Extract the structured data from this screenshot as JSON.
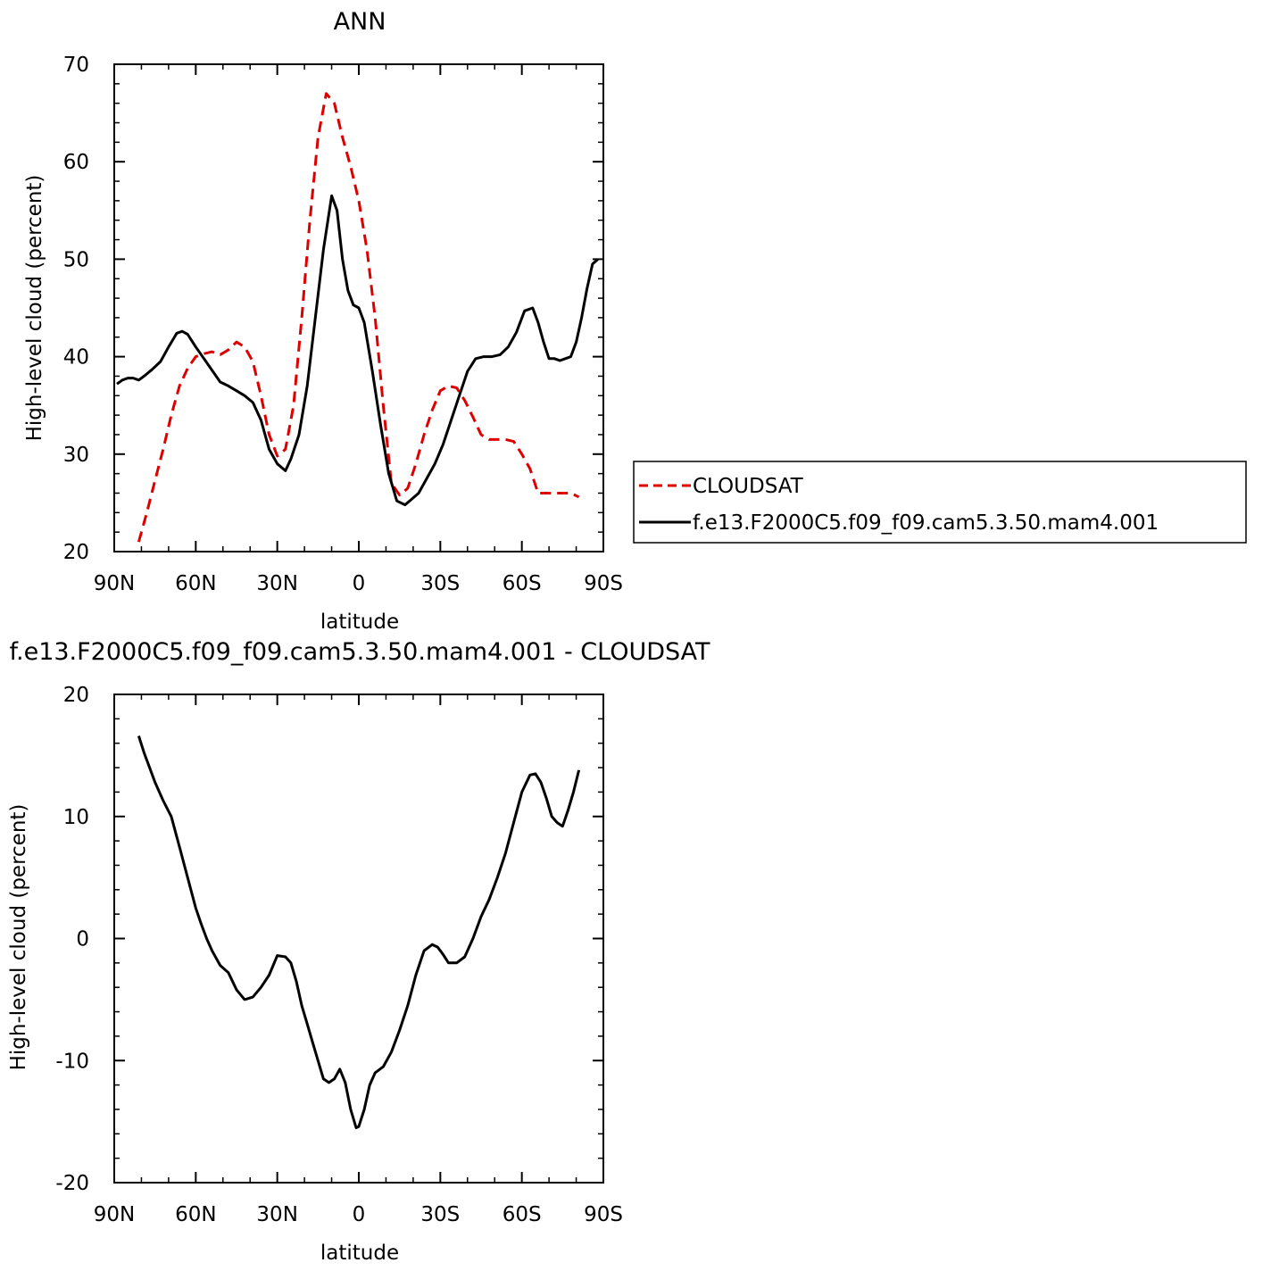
{
  "chart_data": [
    {
      "type": "line",
      "title": "ANN",
      "xlabel": "latitude",
      "ylabel": "High-level cloud (percent)",
      "xlim": [
        90,
        -90
      ],
      "ylim": [
        20,
        70
      ],
      "x_ticks": [
        90,
        60,
        30,
        0,
        -30,
        -60,
        -90
      ],
      "x_tick_labels": [
        "90N",
        "60N",
        "30N",
        "0",
        "30S",
        "60S",
        "90S"
      ],
      "y_ticks": [
        20,
        30,
        40,
        50,
        60,
        70
      ],
      "y_tick_labels": [
        "20",
        "30",
        "40",
        "50",
        "60",
        "70"
      ],
      "grid": false,
      "legend_position": "right",
      "series": [
        {
          "name": "CLOUDSAT",
          "color": "#dd0000",
          "style": "dashed",
          "x": [
            81,
            78,
            75,
            72,
            69,
            66,
            63,
            60,
            57,
            54,
            51,
            48,
            45,
            42,
            39,
            36,
            33,
            30,
            27,
            24,
            21,
            18,
            15,
            12,
            9,
            6,
            3,
            0,
            -3,
            -6,
            -9,
            -12,
            -15,
            -18,
            -21,
            -24,
            -27,
            -30,
            -33,
            -36,
            -39,
            -42,
            -45,
            -48,
            -51,
            -54,
            -57,
            -60,
            -63,
            -66,
            -69,
            -72,
            -75,
            -78,
            -81
          ],
          "values": [
            21.0,
            24.0,
            27.3,
            30.5,
            34.0,
            37.0,
            38.8,
            40.0,
            40.3,
            40.5,
            40.2,
            40.7,
            41.5,
            41.0,
            39.5,
            36.0,
            32.0,
            29.8,
            30.5,
            35.0,
            44.0,
            54.0,
            62.5,
            67.0,
            66.0,
            62.5,
            59.5,
            56.0,
            51.0,
            44.0,
            35.0,
            27.0,
            25.8,
            26.5,
            29.0,
            32.0,
            34.5,
            36.5,
            37.0,
            36.8,
            35.5,
            33.8,
            32.0,
            31.5,
            31.5,
            31.5,
            31.3,
            30.0,
            28.5,
            26.0,
            26.0,
            26.0,
            26.0,
            26.0,
            25.6
          ]
        },
        {
          "name": "f.e13.F2000C5.f09_f09.cam5.3.50.mam4.001",
          "color": "#000000",
          "style": "solid",
          "x": [
            89,
            87,
            85,
            83,
            81,
            79,
            76,
            73,
            70,
            67,
            65,
            63,
            60,
            57,
            54,
            51,
            48,
            45,
            42,
            39,
            36,
            33,
            30,
            27,
            25,
            22,
            19,
            16,
            13,
            10,
            8,
            6,
            4,
            2,
            0,
            -2,
            -5,
            -8,
            -11,
            -14,
            -17,
            -20,
            -22,
            -25,
            -28,
            -31,
            -34,
            -37,
            -40,
            -43,
            -46,
            -49,
            -52,
            -55,
            -58,
            -61,
            -64,
            -66,
            -68,
            -70,
            -72,
            -74,
            -76,
            -78,
            -80,
            -82,
            -84,
            -86,
            -88
          ],
          "values": [
            37.2,
            37.6,
            37.8,
            37.8,
            37.6,
            38.0,
            38.7,
            39.5,
            41.0,
            42.4,
            42.6,
            42.3,
            41.0,
            39.8,
            38.6,
            37.4,
            37.0,
            36.5,
            36.0,
            35.3,
            33.5,
            30.5,
            29.0,
            28.3,
            29.5,
            32.0,
            37.0,
            44.0,
            51.0,
            56.5,
            55.0,
            50.0,
            46.8,
            45.3,
            45.0,
            43.5,
            38.5,
            33.0,
            28.0,
            25.2,
            24.8,
            25.5,
            26.0,
            27.5,
            29.0,
            31.0,
            33.5,
            36.0,
            38.5,
            39.8,
            40.0,
            40.0,
            40.2,
            41.0,
            42.5,
            44.7,
            45.0,
            43.5,
            41.5,
            39.8,
            39.8,
            39.6,
            39.8,
            40.0,
            41.5,
            44.0,
            47.0,
            49.5,
            50.0
          ]
        }
      ]
    },
    {
      "type": "line",
      "title": "f.e13.F2000C5.f09_f09.cam5.3.50.mam4.001 - CLOUDSAT",
      "xlabel": "latitude",
      "ylabel": "High-level cloud (percent)",
      "xlim": [
        90,
        -90
      ],
      "ylim": [
        -20,
        20
      ],
      "x_ticks": [
        90,
        60,
        30,
        0,
        -30,
        -60,
        -90
      ],
      "x_tick_labels": [
        "90N",
        "60N",
        "30N",
        "0",
        "30S",
        "60S",
        "90S"
      ],
      "y_ticks": [
        -20,
        -10,
        0,
        10,
        20
      ],
      "y_tick_labels": [
        "-20",
        "-10",
        "0",
        "10",
        "20"
      ],
      "grid": false,
      "series": [
        {
          "color": "#000000",
          "style": "solid",
          "x": [
            81,
            79,
            77,
            75,
            72,
            69,
            66,
            63,
            60,
            58,
            56,
            54,
            51,
            48,
            45,
            42,
            39,
            36,
            33,
            30,
            27,
            25,
            23,
            21,
            19,
            17,
            15,
            13,
            11,
            9,
            7,
            5,
            3,
            1,
            0,
            -2,
            -4,
            -6,
            -9,
            -12,
            -15,
            -18,
            -21,
            -24,
            -27,
            -29,
            -31,
            -33,
            -36,
            -39,
            -42,
            -45,
            -48,
            -51,
            -54,
            -57,
            -60,
            -63,
            -65,
            -67,
            -69,
            -71,
            -73,
            -75,
            -77,
            -79,
            -81
          ],
          "values": [
            16.6,
            15.2,
            14.0,
            12.8,
            11.3,
            10.0,
            7.5,
            5.0,
            2.5,
            1.2,
            0.0,
            -1.0,
            -2.2,
            -2.8,
            -4.2,
            -5.0,
            -4.8,
            -4.0,
            -3.0,
            -1.4,
            -1.5,
            -2.0,
            -3.5,
            -5.5,
            -7.0,
            -8.5,
            -10.0,
            -11.5,
            -11.8,
            -11.5,
            -10.7,
            -11.8,
            -14.0,
            -15.5,
            -15.4,
            -14.0,
            -12.0,
            -11.0,
            -10.5,
            -9.3,
            -7.5,
            -5.5,
            -3.0,
            -1.0,
            -0.5,
            -0.7,
            -1.3,
            -2.0,
            -2.0,
            -1.5,
            0.0,
            1.8,
            3.2,
            5.0,
            7.0,
            9.5,
            12.0,
            13.4,
            13.5,
            12.8,
            11.5,
            10.0,
            9.5,
            9.2,
            10.5,
            12.0,
            13.8
          ]
        }
      ]
    }
  ]
}
